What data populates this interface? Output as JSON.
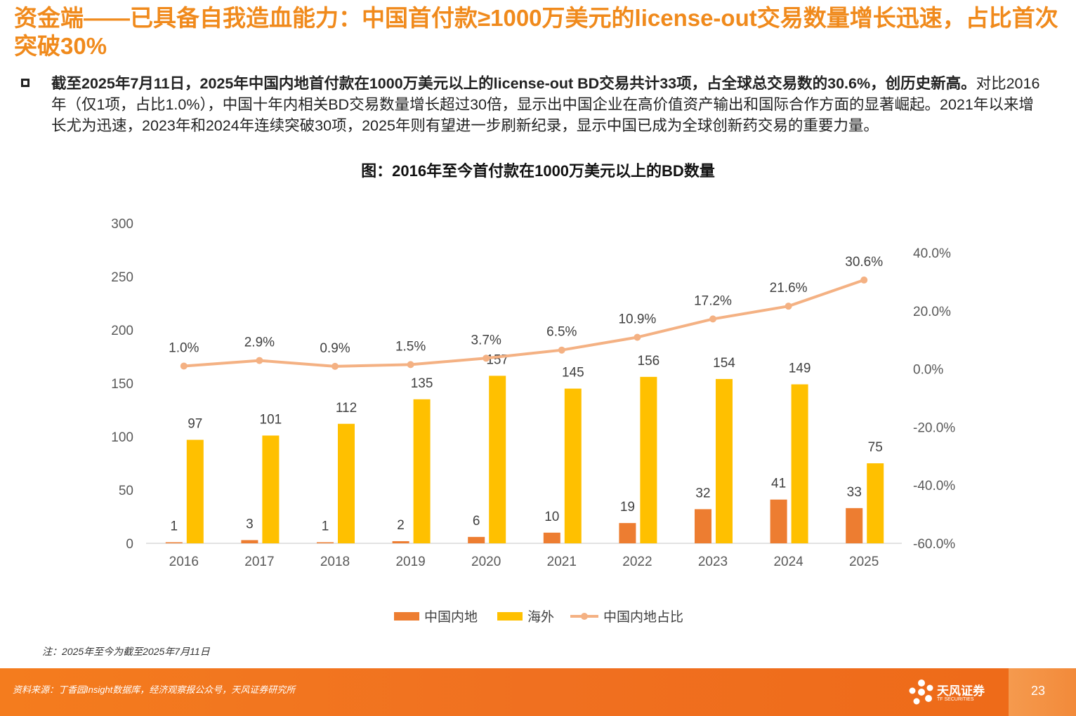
{
  "header": {
    "title": "资金端——已具备自我造血能力：中国首付款≥1000万美元的license-out交易数量增长迅速，占比首次突破30%"
  },
  "bullet": {
    "bold_text": "截至2025年7月11日，2025年中国内地首付款在1000万美元以上的license-out BD交易共计33项，占全球总交易数的30.6%，创历史新高。",
    "body_text": "对比2016年（仅1项，占比1.0%），中国十年内相关BD交易数量增长超过30倍，显示出中国企业在高价值资产输出和国际合作方面的显著崛起。2021年以来增长尤为迅速，2023年和2024年连续突破30项，2025年则有望进一步刷新纪录，显示中国已成为全球创新药交易的重要力量。"
  },
  "chart_title": "图：2016年至今首付款在1000万美元以上的BD数量",
  "chart_data": {
    "type": "bar",
    "title": "图：2016年至今首付款在1000万美元以上的BD数量",
    "categories": [
      "2016",
      "2017",
      "2018",
      "2019",
      "2020",
      "2021",
      "2022",
      "2023",
      "2024",
      "2025"
    ],
    "series": [
      {
        "name": "中国内地",
        "type": "bar",
        "axis": "left",
        "color": "#ed7d31",
        "values": [
          1,
          3,
          1,
          2,
          6,
          10,
          19,
          32,
          41,
          33
        ],
        "labels": [
          "1",
          "3",
          "1",
          "2",
          "6",
          "10",
          "19",
          "32",
          "41",
          "33"
        ]
      },
      {
        "name": "海外",
        "type": "bar",
        "axis": "left",
        "color": "#ffc000",
        "values": [
          97,
          101,
          112,
          135,
          157,
          145,
          156,
          154,
          149,
          75
        ],
        "labels": [
          "97",
          "101",
          "112",
          "135",
          "157",
          "145",
          "156",
          "154",
          "149",
          "75"
        ]
      },
      {
        "name": "中国内地占比",
        "type": "line",
        "axis": "right",
        "color": "#f4b183",
        "values": [
          1.0,
          2.9,
          0.9,
          1.5,
          3.7,
          6.5,
          10.9,
          17.2,
          21.6,
          30.6
        ],
        "labels": [
          "1.0%",
          "2.9%",
          "0.9%",
          "1.5%",
          "3.7%",
          "6.5%",
          "10.9%",
          "17.2%",
          "21.6%",
          "30.6%"
        ]
      }
    ],
    "y_left": {
      "min": 0,
      "max": 300,
      "ticks": [
        0,
        50,
        100,
        150,
        200,
        250,
        300
      ],
      "tick_labels": [
        "0",
        "50",
        "100",
        "150",
        "200",
        "250",
        "300"
      ]
    },
    "y_right": {
      "min": -60,
      "max": 40,
      "ticks": [
        -60,
        -40,
        -20,
        0,
        20,
        40
      ],
      "tick_labels": [
        "-60.0%",
        "-40.0%",
        "-20.0%",
        "0.0%",
        "20.0%",
        "40.0%"
      ]
    },
    "legend": [
      "中国内地",
      "海外",
      "中国内地占比"
    ],
    "legend_position": "bottom"
  },
  "note": "注：2025年至今为截至2025年7月11日",
  "footer": {
    "source": "资料来源：丁香园Insight数据库，经济观察报公众号，天风证券研究所",
    "logo_name": "天风证券",
    "logo_sub": "TF SECURITIES",
    "page_number": "23",
    "colors": {
      "background": "#f07020",
      "page_block": "#f59a4e"
    }
  }
}
